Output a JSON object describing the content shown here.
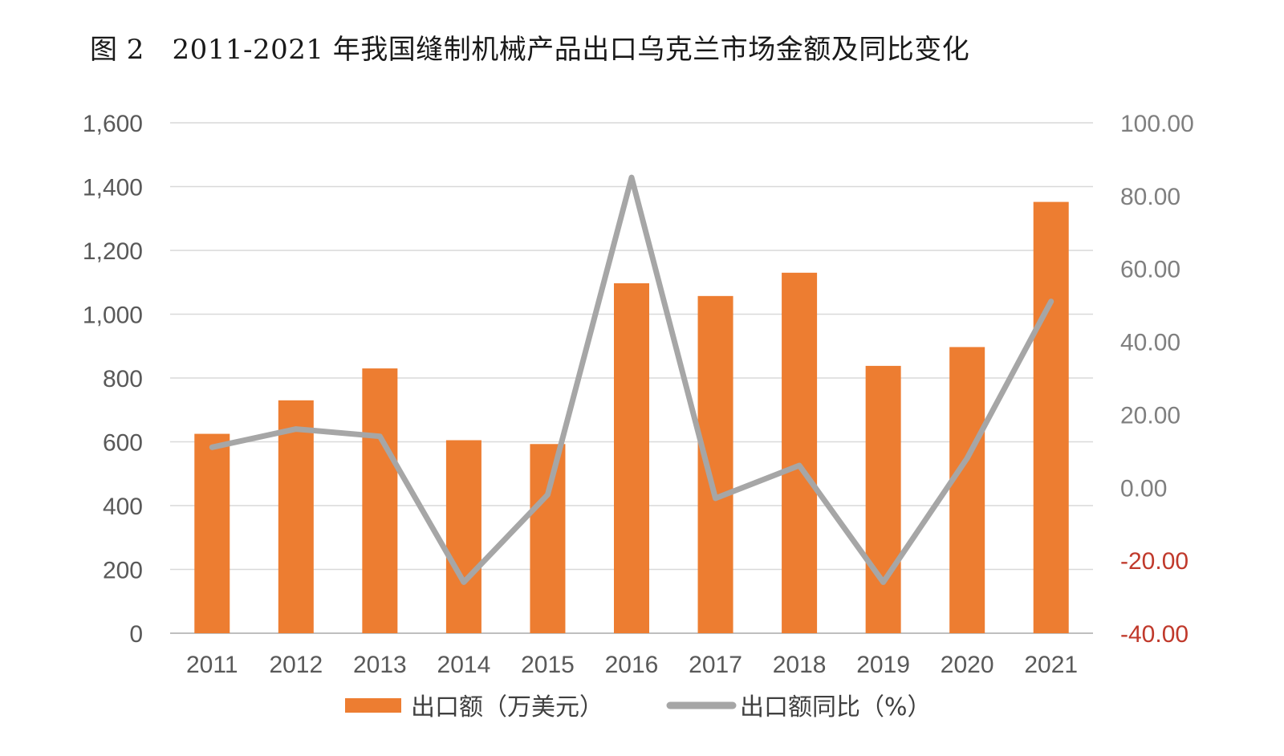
{
  "title": "图 2　2011-2021 年我国缝制机械产品出口乌克兰市场金额及同比变化",
  "colors": {
    "bar": "#ed7d31",
    "line": "#a6a6a6",
    "grid": "#d9d9d9",
    "negative_tick": "#c0392b"
  },
  "chart_data": {
    "type": "bar",
    "title": "图 2　2011-2021 年我国缝制机械产品出口乌克兰市场金额及同比变化",
    "categories": [
      "2011",
      "2012",
      "2013",
      "2014",
      "2015",
      "2016",
      "2017",
      "2018",
      "2019",
      "2020",
      "2021"
    ],
    "series": [
      {
        "name": "出口额（万美元）",
        "type": "bar",
        "axis": "left",
        "values": [
          625,
          730,
          830,
          605,
          593,
          1097,
          1057,
          1130,
          838,
          897,
          1352
        ]
      },
      {
        "name": "出口额同比（%）",
        "type": "line",
        "axis": "right",
        "values": [
          11,
          16,
          14,
          -26,
          -2,
          85,
          -3,
          6,
          -26,
          8,
          51
        ]
      }
    ],
    "y_left": {
      "min": 0,
      "max": 1600,
      "ticks": [
        "0",
        "200",
        "400",
        "600",
        "800",
        "1,000",
        "1,200",
        "1,400",
        "1,600"
      ]
    },
    "y_right": {
      "min": -40,
      "max": 100,
      "ticks": [
        "-40.00",
        "-20.00",
        "0.00",
        "20.00",
        "40.00",
        "60.00",
        "80.00",
        "100.00"
      ]
    },
    "grid": true,
    "legend": "bottom"
  }
}
